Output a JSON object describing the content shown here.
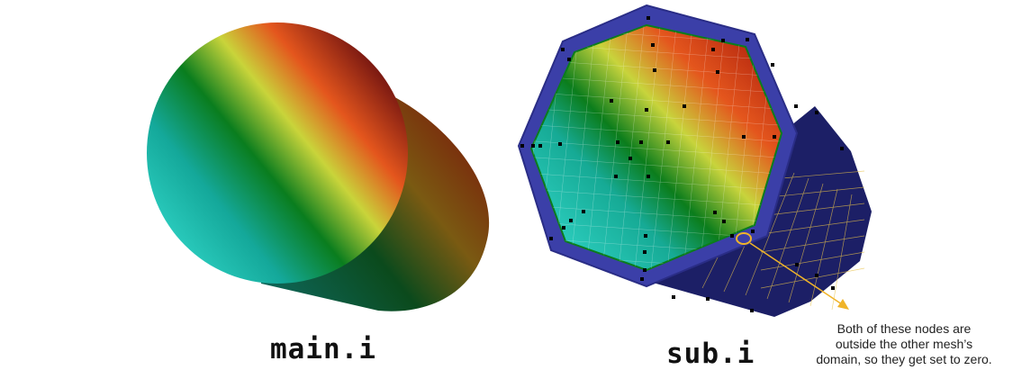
{
  "left_model": {
    "label": "main.i"
  },
  "right_model": {
    "label": "sub.i"
  },
  "annotation": {
    "lines": [
      "Both of these nodes are",
      "outside the other mesh’s",
      "domain, so they get set to zero."
    ]
  },
  "colors": {
    "gradient": [
      "#1fbfb5",
      "#0c8a55",
      "#0a7a10",
      "#c8d23a",
      "#e0561c",
      "#5a0c0c"
    ],
    "mesh_blue": "#3b3fa8",
    "mesh_blue_dark": "#1c1f66",
    "annotation_accent": "#f0b429",
    "node_marker": "#000000"
  }
}
